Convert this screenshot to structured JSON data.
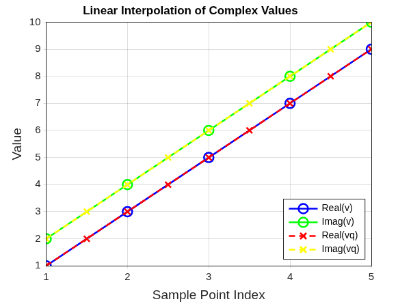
{
  "chart_data": {
    "type": "line",
    "title": "Linear Interpolation of Complex Values",
    "x_label": "Sample Point Index",
    "y_label": "Value",
    "xlim": [
      1,
      5
    ],
    "xticks": [
      1,
      2,
      3,
      4,
      5
    ],
    "ylim": [
      1,
      10
    ],
    "yticks": [
      1,
      2,
      3,
      4,
      5,
      6,
      7,
      8,
      9,
      10
    ],
    "grid": true,
    "legend": "southeast",
    "series": [
      {
        "name": "Real(v)",
        "color": "#0000ff",
        "marker": "circle",
        "line_style": "solid",
        "x": [
          1,
          2,
          3,
          4,
          5
        ],
        "values": [
          1,
          3,
          5,
          7,
          9
        ]
      },
      {
        "name": "Imag(v)",
        "color": "#00ff00",
        "marker": "circle",
        "line_style": "solid",
        "x": [
          1,
          2,
          3,
          4,
          5
        ],
        "values": [
          2,
          4,
          6,
          8,
          10
        ]
      },
      {
        "name": "Real(vq)",
        "color": "#ff0000",
        "marker": "x",
        "line_style": "dashed",
        "x": [
          1,
          1.5,
          2,
          2.5,
          3,
          3.5,
          4,
          4.5,
          5
        ],
        "values": [
          1,
          2,
          3,
          4,
          5,
          6,
          7,
          8,
          9
        ]
      },
      {
        "name": "Imag(vq)",
        "color": "#ffff00",
        "marker": "x",
        "line_style": "dashed",
        "x": [
          1,
          1.5,
          2,
          2.5,
          3,
          3.5,
          4,
          4.5,
          5
        ],
        "values": [
          2,
          3,
          4,
          5,
          6,
          7,
          8,
          9,
          10
        ]
      }
    ]
  }
}
